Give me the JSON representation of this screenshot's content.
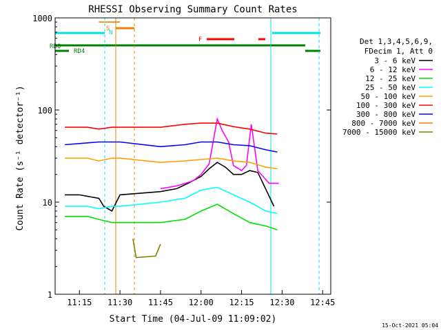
{
  "chart_data": {
    "type": "line",
    "title": "RHESSI Observing Summary Count Rates",
    "xlabel": "Start Time (04-Jul-09 11:09:02)",
    "ylabel": "Count Rate (s⁻¹ detector⁻¹)",
    "yscale": "log",
    "ylim": [
      1,
      1000
    ],
    "xlim_minutes": [
      11.1,
      12.8
    ],
    "y_ticks": [
      "1",
      "10",
      "100",
      "1000"
    ],
    "x_ticks": [
      {
        "t": 11.25,
        "label": "11:15"
      },
      {
        "t": 11.5,
        "label": "11:30"
      },
      {
        "t": 11.75,
        "label": "11:45"
      },
      {
        "t": 12.0,
        "label": "12:00"
      },
      {
        "t": 12.25,
        "label": "12:15"
      },
      {
        "t": 12.5,
        "label": "12:30"
      },
      {
        "t": 12.75,
        "label": "12:45"
      }
    ],
    "legend": {
      "header": [
        "Det 1,3,4,5,6,9,",
        "FDecim 1, Att 0"
      ],
      "placement": "right"
    },
    "datestamp": "15-Oct-2021 05:04",
    "state_bars": {
      "labels": {
        "saa": "S",
        "night": "N",
        "flare": "F",
        "rbo": "RBO",
        "rd4": "RD4"
      },
      "colors": {
        "saa": "#f08000",
        "night": "#00e0e0",
        "flare": "#ff0000",
        "att": "#008000"
      }
    },
    "series": [
      {
        "name": "3 - 6 keV",
        "color": "#000000",
        "values": [
          [
            11.16,
            12
          ],
          [
            11.25,
            12
          ],
          [
            11.37,
            11
          ],
          [
            11.4,
            9
          ],
          [
            11.45,
            8
          ],
          [
            11.5,
            12
          ],
          [
            11.75,
            13
          ],
          [
            11.85,
            14
          ],
          [
            11.92,
            16
          ],
          [
            12.0,
            19
          ],
          [
            12.05,
            23
          ],
          [
            12.1,
            27
          ],
          [
            12.15,
            24
          ],
          [
            12.2,
            20
          ],
          [
            12.25,
            20
          ],
          [
            12.3,
            22
          ],
          [
            12.35,
            21
          ],
          [
            12.45,
            9
          ]
        ]
      },
      {
        "name": "6 - 12 keV",
        "color": "#ff00ff",
        "values": [
          [
            11.75,
            14
          ],
          [
            11.85,
            15
          ],
          [
            11.95,
            17
          ],
          [
            12.0,
            20
          ],
          [
            12.05,
            26
          ],
          [
            12.1,
            80
          ],
          [
            12.13,
            60
          ],
          [
            12.17,
            45
          ],
          [
            12.2,
            25
          ],
          [
            12.25,
            22
          ],
          [
            12.28,
            25
          ],
          [
            12.31,
            70
          ],
          [
            12.35,
            22
          ],
          [
            12.42,
            16
          ],
          [
            12.48,
            16
          ]
        ]
      },
      {
        "name": "12 - 25 keV",
        "color": "#00e000",
        "values": [
          [
            11.16,
            7
          ],
          [
            11.3,
            7
          ],
          [
            11.37,
            6.5
          ],
          [
            11.45,
            6
          ],
          [
            11.5,
            6
          ],
          [
            11.75,
            6
          ],
          [
            11.9,
            6.5
          ],
          [
            12.0,
            8
          ],
          [
            12.1,
            9.5
          ],
          [
            12.2,
            7.5
          ],
          [
            12.3,
            6
          ],
          [
            12.4,
            5.5
          ],
          [
            12.47,
            5
          ]
        ]
      },
      {
        "name": "25 - 50 keV",
        "color": "#00ffff",
        "values": [
          [
            11.16,
            9
          ],
          [
            11.3,
            9
          ],
          [
            11.37,
            8.5
          ],
          [
            11.45,
            9
          ],
          [
            11.5,
            9
          ],
          [
            11.75,
            10
          ],
          [
            11.9,
            11
          ],
          [
            12.0,
            13.5
          ],
          [
            12.1,
            14.5
          ],
          [
            12.2,
            12
          ],
          [
            12.3,
            10
          ],
          [
            12.4,
            8
          ],
          [
            12.47,
            7.5
          ]
        ]
      },
      {
        "name": "50 - 100 keV",
        "color": "#ffa000",
        "values": [
          [
            11.16,
            30
          ],
          [
            11.3,
            30
          ],
          [
            11.37,
            28
          ],
          [
            11.45,
            30
          ],
          [
            11.5,
            30
          ],
          [
            11.75,
            27
          ],
          [
            11.9,
            28
          ],
          [
            12.0,
            29
          ],
          [
            12.1,
            30
          ],
          [
            12.2,
            28
          ],
          [
            12.3,
            27
          ],
          [
            12.4,
            24
          ],
          [
            12.47,
            23
          ]
        ]
      },
      {
        "name": "100 - 300 keV",
        "color": "#ff0000",
        "values": [
          [
            11.16,
            65
          ],
          [
            11.3,
            65
          ],
          [
            11.37,
            62
          ],
          [
            11.45,
            65
          ],
          [
            11.5,
            65
          ],
          [
            11.75,
            65
          ],
          [
            11.9,
            70
          ],
          [
            12.0,
            72
          ],
          [
            12.1,
            72
          ],
          [
            12.2,
            66
          ],
          [
            12.3,
            62
          ],
          [
            12.4,
            56
          ],
          [
            12.47,
            55
          ]
        ]
      },
      {
        "name": "300 - 800 keV",
        "color": "#0000ff",
        "values": [
          [
            11.16,
            42
          ],
          [
            11.3,
            44
          ],
          [
            11.37,
            45
          ],
          [
            11.45,
            45
          ],
          [
            11.5,
            45
          ],
          [
            11.75,
            40
          ],
          [
            11.9,
            42
          ],
          [
            12.0,
            45
          ],
          [
            12.1,
            45
          ],
          [
            12.2,
            42
          ],
          [
            12.3,
            41
          ],
          [
            12.4,
            37
          ],
          [
            12.47,
            35
          ]
        ]
      },
      {
        "name": "800 - 7000 keV",
        "color": "#f08000",
        "values": [
          [
            11.37,
            900
          ],
          [
            11.5,
            900
          ]
        ]
      },
      {
        "name": "7000 - 15000 keV",
        "color": "#808000",
        "values": [
          [
            11.58,
            4
          ],
          [
            11.6,
            2.5
          ],
          [
            11.72,
            2.6
          ],
          [
            11.75,
            3.5
          ]
        ]
      }
    ]
  }
}
